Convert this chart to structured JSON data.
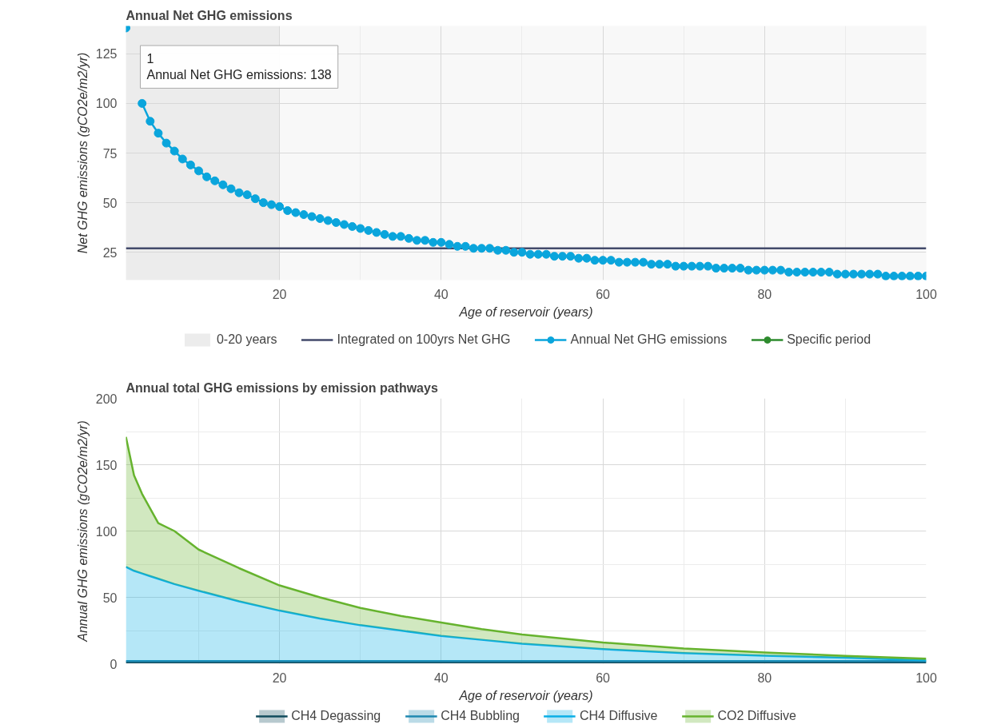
{
  "chart_data": [
    {
      "type": "line",
      "title": "Annual Net GHG emissions",
      "xlabel": "Age of reservoir (years)",
      "ylabel": "Net GHG emissions (gCO2e/m2/yr)",
      "x": [
        1,
        2,
        3,
        4,
        5,
        6,
        7,
        8,
        9,
        10,
        11,
        12,
        13,
        14,
        15,
        16,
        17,
        18,
        19,
        20,
        21,
        22,
        23,
        24,
        25,
        26,
        27,
        28,
        29,
        30,
        31,
        32,
        33,
        34,
        35,
        36,
        37,
        38,
        39,
        40,
        41,
        42,
        43,
        44,
        45,
        46,
        47,
        48,
        49,
        50,
        51,
        52,
        53,
        54,
        55,
        56,
        57,
        58,
        59,
        60,
        61,
        62,
        63,
        64,
        65,
        66,
        67,
        68,
        69,
        70,
        71,
        72,
        73,
        74,
        75,
        76,
        77,
        78,
        79,
        80,
        81,
        82,
        83,
        84,
        85,
        86,
        87,
        88,
        89,
        90,
        91,
        92,
        93,
        94,
        95,
        96,
        97,
        98,
        99,
        100
      ],
      "series": [
        {
          "name": "Annual Net GHG emissions",
          "color": "#0aa5dc",
          "marker": "circle",
          "values": [
            138,
            null,
            100,
            91,
            85,
            80,
            76,
            72,
            69,
            66,
            63,
            61,
            59,
            57,
            55,
            54,
            52,
            50,
            49,
            48,
            46,
            45,
            44,
            43,
            42,
            41,
            40,
            39,
            38,
            37,
            36,
            35,
            34,
            33,
            33,
            32,
            31,
            31,
            30,
            30,
            29,
            28,
            28,
            27,
            27,
            27,
            26,
            26,
            25,
            25,
            24,
            24,
            24,
            23,
            23,
            23,
            22,
            22,
            21,
            21,
            21,
            20,
            20,
            20,
            20,
            19,
            19,
            19,
            18,
            18,
            18,
            18,
            18,
            17,
            17,
            17,
            17,
            16,
            16,
            16,
            16,
            16,
            15,
            15,
            15,
            15,
            15,
            15,
            14,
            14,
            14,
            14,
            14,
            14,
            13,
            13,
            13,
            13,
            13,
            13
          ]
        },
        {
          "name": "Specific period",
          "color": "#2e8b2e",
          "marker": "circle",
          "values": [
            null,
            null,
            null,
            null,
            null,
            null,
            null,
            null,
            null,
            null,
            null,
            null,
            null,
            null,
            null,
            null,
            null,
            null,
            null,
            null,
            null,
            null,
            null,
            null,
            null,
            null,
            null,
            null,
            null,
            null,
            null,
            null,
            null,
            null,
            null,
            null,
            null,
            null,
            null,
            null,
            null,
            null,
            null,
            null,
            null,
            null,
            null,
            null,
            null,
            null,
            null,
            null,
            null,
            null,
            null,
            null,
            null,
            null,
            null,
            null,
            null,
            null,
            null,
            null,
            null,
            null,
            null,
            null,
            null,
            null,
            null,
            null,
            null,
            null,
            null,
            null,
            null,
            null,
            null,
            null,
            null,
            null,
            null,
            null,
            null,
            null,
            null,
            null,
            null,
            null,
            null,
            null,
            null,
            null,
            null,
            null,
            null,
            null,
            null,
            null
          ]
        }
      ],
      "bands": [
        {
          "axis": "x",
          "from": 1,
          "to": 20,
          "label": "0-20 years",
          "color": "#ececec"
        }
      ],
      "ref_lines": [
        {
          "axis": "y",
          "value": 27,
          "label": "Integrated on 100yrs Net GHG",
          "color": "#434a6b"
        }
      ],
      "annotations": [
        {
          "text": "1\nAnnual Net GHG emissions: 138",
          "x": 1,
          "y": 138
        }
      ],
      "xlim": [
        1,
        100
      ],
      "xticks": [
        {
          "value": 10,
          "label": null
        },
        20,
        {
          "value": 30,
          "label": null
        },
        40,
        {
          "value": 50,
          "label": null
        },
        60,
        {
          "value": 70,
          "label": null
        },
        80,
        {
          "value": 90,
          "label": null
        },
        100
      ],
      "ylim": [
        11,
        139
      ],
      "yticks": [
        25,
        50,
        75,
        100,
        125
      ],
      "grid": true,
      "legend": "bottom"
    },
    {
      "type": "area",
      "stacked": true,
      "title": "Annual total GHG emissions by emission pathways",
      "xlabel": "Age of reservoir (years)",
      "ylabel": "Annual GHG emissions (gCO2e/m2/yr)",
      "x": [
        1,
        2,
        3,
        4,
        5,
        7,
        10,
        15,
        20,
        25,
        30,
        35,
        40,
        45,
        50,
        60,
        70,
        80,
        90,
        100
      ],
      "series": [
        {
          "name": "CH4 Degassing",
          "color": "#114b5c",
          "values": [
            1,
            1,
            1,
            1,
            1,
            1,
            1,
            1,
            1,
            1,
            1,
            1,
            1,
            1,
            1,
            1,
            1,
            1,
            1,
            1
          ]
        },
        {
          "name": "CH4 Bubbling",
          "color": "#1f88b0",
          "values": [
            1,
            1,
            1,
            1,
            1,
            1,
            1,
            1,
            1,
            1,
            1,
            1,
            1,
            1,
            1,
            1,
            1,
            1,
            1,
            1
          ]
        },
        {
          "name": "CH4 Diffusive",
          "color": "#0aaee6",
          "values": [
            71,
            68,
            66,
            64,
            62,
            58,
            53,
            45,
            38,
            32,
            27,
            23,
            19,
            16,
            13,
            9,
            6,
            4,
            2.5,
            0.5
          ]
        },
        {
          "name": "CO2 Diffusive",
          "color": "#66b32e",
          "values": [
            98,
            72,
            60,
            51,
            42,
            40,
            31,
            25,
            19,
            16,
            13,
            11,
            10,
            8,
            7,
            5,
            3.5,
            2.4,
            1.4,
            1.2
          ]
        }
      ],
      "xlim": [
        1,
        100
      ],
      "xticks": [
        {
          "value": 10,
          "label": null
        },
        20,
        {
          "value": 30,
          "label": null
        },
        40,
        {
          "value": 50,
          "label": null
        },
        60,
        {
          "value": 70,
          "label": null
        },
        80,
        {
          "value": 90,
          "label": null
        },
        100
      ],
      "ylim": [
        0,
        200
      ],
      "yticks": [
        0,
        {
          "value": 25,
          "label": null
        },
        50,
        {
          "value": 75,
          "label": null
        },
        100,
        {
          "value": 125,
          "label": null
        },
        150,
        {
          "value": 175,
          "label": null
        },
        200
      ],
      "grid": true,
      "legend": "bottom",
      "marker": "none"
    }
  ]
}
